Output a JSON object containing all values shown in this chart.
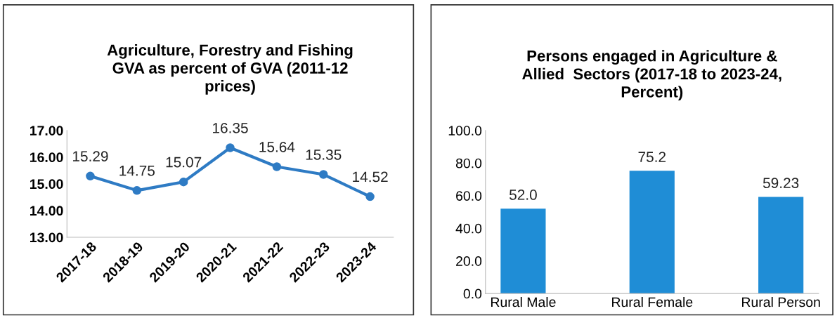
{
  "chart_data": [
    {
      "type": "line",
      "title": "Agriculture, Forestry and Fishing\nGVA as percent of GVA (2011-12\nprices)",
      "categories": [
        "2017-18",
        "2018-19",
        "2019-20",
        "2020-21",
        "2021-22",
        "2022-23",
        "2023-24"
      ],
      "values": [
        15.29,
        14.75,
        15.07,
        16.35,
        15.64,
        15.35,
        14.52
      ],
      "color": "#2e7bc4",
      "marker": "circle",
      "data_labels": true,
      "ylim": [
        13,
        17
      ],
      "yticks": [
        {
          "value": 13,
          "label": "13.00"
        },
        {
          "value": 14,
          "label": "14.00"
        },
        {
          "value": 15,
          "label": "15.00"
        },
        {
          "value": 16,
          "label": "16.00"
        },
        {
          "value": 17,
          "label": "17.00"
        }
      ],
      "grid": false,
      "legend": false
    },
    {
      "type": "bar",
      "title": "Persons engaged in Agriculture &\nAllied  Sectors (2017-18 to 2023-24,\nPercent)",
      "categories": [
        "Rural Male",
        "Rural Female",
        "Rural Person"
      ],
      "values": [
        52.0,
        75.2,
        59.23
      ],
      "value_labels": [
        "52.0",
        "75.2",
        "59.23"
      ],
      "color": "#1f8dd6",
      "ylim": [
        0,
        100
      ],
      "yticks": [
        {
          "value": 0,
          "label": "0.0"
        },
        {
          "value": 20,
          "label": "20.0"
        },
        {
          "value": 40,
          "label": "40.0"
        },
        {
          "value": 60,
          "label": "60.0"
        },
        {
          "value": 80,
          "label": "80.0"
        },
        {
          "value": 100,
          "label": "100.0"
        }
      ],
      "grid": false,
      "legend": false
    }
  ]
}
